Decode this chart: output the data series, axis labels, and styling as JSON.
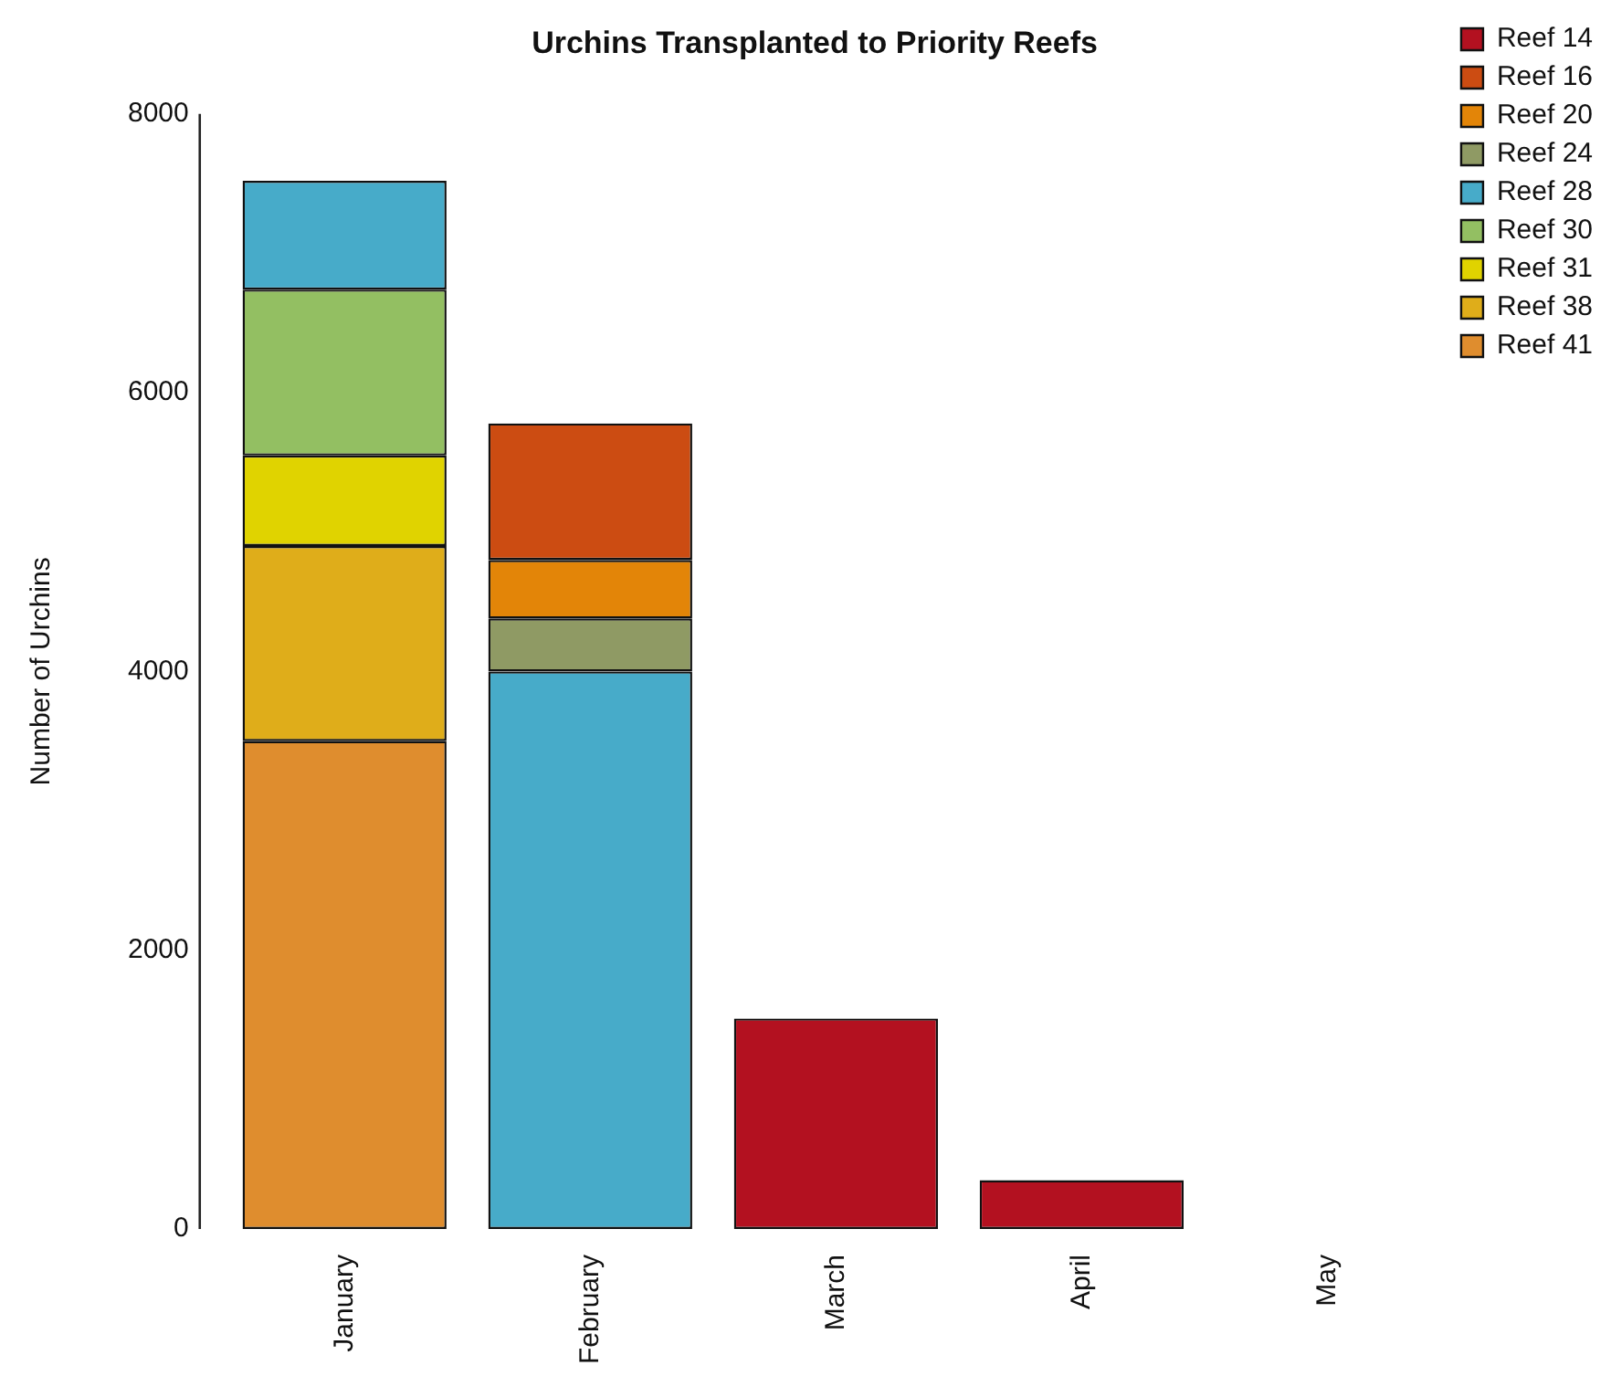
{
  "chart_data": {
    "type": "bar",
    "title": "Urchins Transplanted to Priority Reefs",
    "ylabel": "Number of Urchins",
    "categories": [
      "January",
      "February",
      "March",
      "April",
      "May"
    ],
    "stacked": true,
    "ylim": [
      0,
      8000
    ],
    "yticks": [
      0,
      2000,
      4000,
      6000,
      8000
    ],
    "grid": false,
    "legend": "top right",
    "series": [
      {
        "name": "Reef 41",
        "color": "#df8d2e",
        "values": [
          3500,
          null,
          null,
          null,
          null
        ]
      },
      {
        "name": "Reef 38",
        "color": "#dfad1a",
        "values": [
          1400,
          null,
          null,
          null,
          null
        ]
      },
      {
        "name": "Reef 31",
        "color": "#e0d300",
        "values": [
          650,
          null,
          null,
          null,
          null
        ]
      },
      {
        "name": "Reef 30",
        "color": "#93bf62",
        "values": [
          1190,
          null,
          null,
          null,
          null
        ]
      },
      {
        "name": "Reef 28",
        "color": "#47abc9",
        "values": [
          780,
          4000,
          null,
          null,
          null
        ]
      },
      {
        "name": "Reef 24",
        "color": "#8f9a64",
        "values": [
          null,
          380,
          null,
          null,
          null
        ]
      },
      {
        "name": "Reef 20",
        "color": "#e38508",
        "values": [
          null,
          420,
          null,
          null,
          null
        ]
      },
      {
        "name": "Reef 16",
        "color": "#cc4c12",
        "values": [
          null,
          980,
          null,
          null,
          null
        ]
      },
      {
        "name": "Reef 14",
        "color": "#b31120",
        "values": [
          null,
          null,
          1510,
          350,
          0
        ]
      }
    ]
  }
}
